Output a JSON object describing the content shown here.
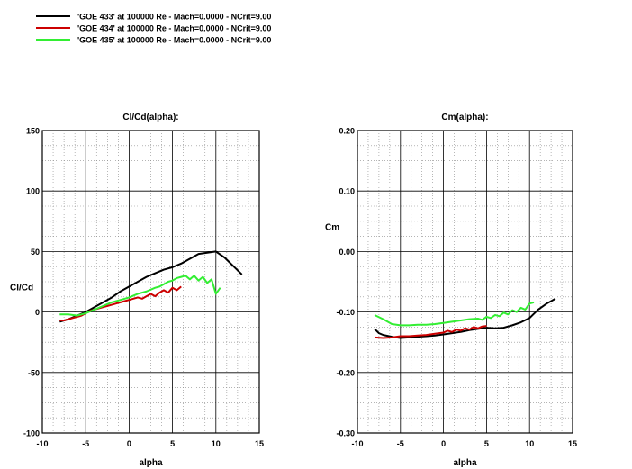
{
  "legend": {
    "entries": [
      {
        "label": "'GOE 433' at 100000 Re - Mach=0.0000 - NCrit=9.00",
        "color": "#000000"
      },
      {
        "label": "'GOE 434' at 100000 Re - Mach=0.0000 - NCrit=9.00",
        "color": "#cc0000"
      },
      {
        "label": "'GOE 435' at 100000 Re - Mach=0.0000 - NCrit=9.00",
        "color": "#33ee33"
      }
    ]
  },
  "chart_data": [
    {
      "type": "line",
      "title": "Cl/Cd(alpha):",
      "xlabel": "alpha",
      "ylabel": "Cl/Cd",
      "xlim": [
        -10,
        15
      ],
      "ylim": [
        -100,
        150
      ],
      "xticks": [
        -10,
        -5,
        0,
        5,
        10,
        15
      ],
      "yticks": [
        -100,
        -50,
        0,
        50,
        100,
        150
      ],
      "ytick_labels": [
        "-100",
        "-50",
        "0",
        "50",
        "100",
        "150"
      ],
      "grid": true,
      "series": [
        {
          "name": "'GOE 433' at 100000 Re - Mach=0.0000 - NCrit=9.00",
          "color": "#000000",
          "x": [
            -8,
            -7,
            -6,
            -5,
            -4,
            -3,
            -2,
            -1,
            0,
            1,
            2,
            3,
            4,
            5,
            6,
            7,
            8,
            9,
            10,
            11,
            12,
            13
          ],
          "y": [
            -8,
            -6,
            -3,
            0,
            4,
            8,
            12,
            17,
            21,
            25,
            29,
            32,
            35,
            37,
            40,
            44,
            48,
            49,
            50,
            45,
            38,
            31
          ]
        },
        {
          "name": "'GOE 434' at 100000 Re - Mach=0.0000 - NCrit=9.00",
          "color": "#cc0000",
          "x": [
            -8,
            -7.5,
            -7,
            -6.5,
            -6,
            -5.5,
            -5,
            -4.5,
            -4,
            -3.5,
            -3,
            -2.5,
            -2,
            -1.5,
            -1,
            -0.5,
            0,
            0.5,
            1,
            1.5,
            2,
            2.5,
            3,
            3.5,
            4,
            4.5,
            5,
            5.5,
            6
          ],
          "y": [
            -7,
            -7,
            -6,
            -5,
            -4,
            -3,
            -1,
            1,
            2,
            3,
            4,
            5,
            6,
            7,
            8,
            9,
            10,
            11,
            12,
            11,
            13,
            15,
            13,
            16,
            18,
            16,
            20,
            18,
            21
          ]
        },
        {
          "name": "'GOE 435' at 100000 Re - Mach=0.0000 - NCrit=9.00",
          "color": "#33ee33",
          "x": [
            -8,
            -7,
            -6,
            -5,
            -4,
            -3,
            -2,
            -1,
            0,
            1,
            2,
            3,
            3.5,
            4,
            4.5,
            5,
            5.5,
            6,
            6.5,
            7,
            7.5,
            8,
            8.5,
            9,
            9.5,
            10,
            10.5
          ],
          "y": [
            -2,
            -2,
            -3,
            -1,
            2,
            5,
            8,
            10,
            12,
            15,
            17,
            20,
            21,
            23,
            25,
            26,
            28,
            29,
            30,
            27,
            30,
            26,
            29,
            24,
            27,
            15,
            20
          ]
        }
      ]
    },
    {
      "type": "line",
      "title": "Cm(alpha):",
      "xlabel": "alpha",
      "ylabel": "Cm",
      "xlim": [
        -10,
        15
      ],
      "ylim": [
        -0.3,
        0.2
      ],
      "xticks": [
        -10,
        -5,
        0,
        5,
        10,
        15
      ],
      "yticks": [
        -0.3,
        -0.2,
        -0.1,
        0.0,
        0.1,
        0.2
      ],
      "ytick_labels": [
        "-0.30",
        "-0.20",
        "-0.10",
        "0.00",
        "0.10",
        "0.20"
      ],
      "grid": true,
      "series": [
        {
          "name": "'GOE 433' at 100000 Re - Mach=0.0000 - NCrit=9.00",
          "color": "#000000",
          "x": [
            -8,
            -7.5,
            -7,
            -6,
            -5,
            -4,
            -3,
            -2,
            -1,
            0,
            1,
            2,
            3,
            4,
            5,
            6,
            7,
            8,
            9,
            10,
            11,
            12,
            13
          ],
          "y": [
            -0.128,
            -0.135,
            -0.138,
            -0.141,
            -0.143,
            -0.142,
            -0.141,
            -0.14,
            -0.139,
            -0.137,
            -0.135,
            -0.133,
            -0.13,
            -0.128,
            -0.126,
            -0.127,
            -0.126,
            -0.122,
            -0.117,
            -0.11,
            -0.096,
            -0.086,
            -0.078
          ]
        },
        {
          "name": "'GOE 434' at 100000 Re - Mach=0.0000 - NCrit=9.00",
          "color": "#cc0000",
          "x": [
            -8,
            -7,
            -6,
            -5,
            -4,
            -3,
            -2,
            -1,
            0,
            0.5,
            1,
            1.5,
            2,
            2.5,
            3,
            3.5,
            4,
            4.5,
            5
          ],
          "y": [
            -0.142,
            -0.143,
            -0.142,
            -0.14,
            -0.14,
            -0.139,
            -0.138,
            -0.136,
            -0.134,
            -0.131,
            -0.133,
            -0.129,
            -0.131,
            -0.127,
            -0.129,
            -0.125,
            -0.127,
            -0.124,
            -0.123
          ]
        },
        {
          "name": "'GOE 435' at 100000 Re - Mach=0.0000 - NCrit=9.00",
          "color": "#33ee33",
          "x": [
            -8,
            -7,
            -6,
            -5,
            -4,
            -3,
            -2,
            -1,
            0,
            1,
            2,
            3,
            4,
            4.5,
            5,
            5.5,
            6,
            6.5,
            7,
            7.5,
            8,
            8.5,
            9,
            9.5,
            10,
            10.5
          ],
          "y": [
            -0.105,
            -0.112,
            -0.12,
            -0.122,
            -0.122,
            -0.121,
            -0.121,
            -0.12,
            -0.118,
            -0.116,
            -0.114,
            -0.112,
            -0.111,
            -0.113,
            -0.108,
            -0.11,
            -0.105,
            -0.107,
            -0.101,
            -0.104,
            -0.097,
            -0.1,
            -0.093,
            -0.096,
            -0.086,
            -0.084
          ]
        }
      ]
    }
  ]
}
